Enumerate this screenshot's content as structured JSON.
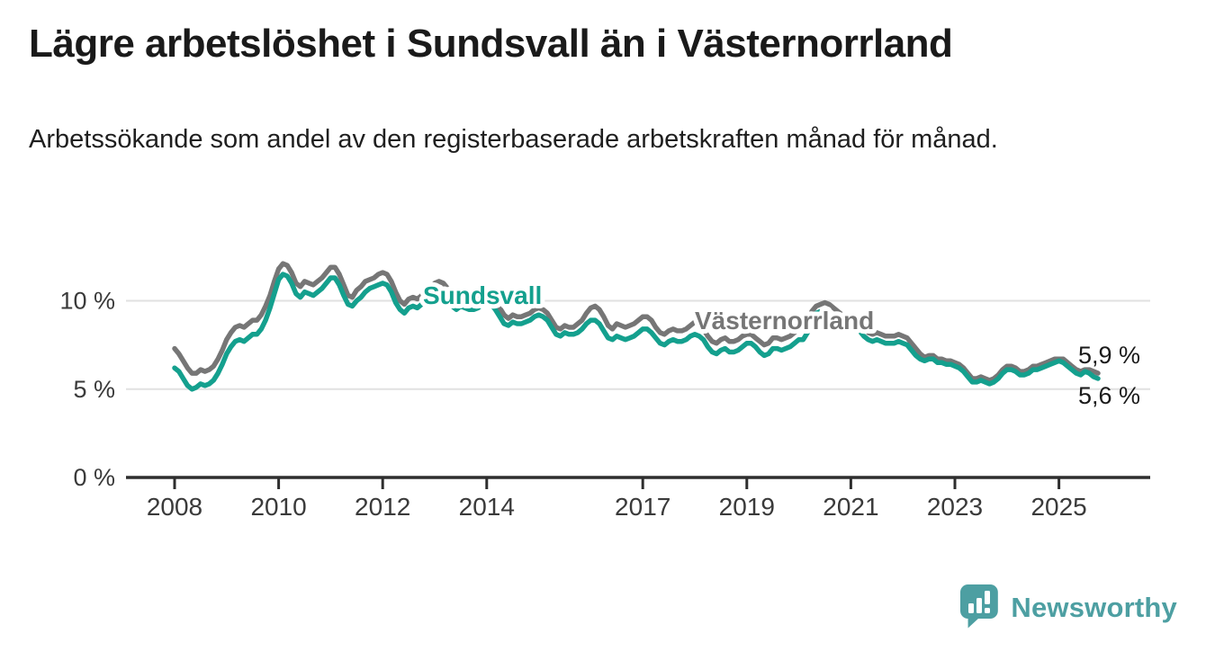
{
  "title": "Lägre arbetslöshet i Sundsvall än i Västernorrland",
  "subtitle": "Arbetssökande som andel av den registerbaserade arbetskraften månad för månad.",
  "branding": {
    "logo_text": "Newsworthy",
    "logo_color": "#4d9fa2",
    "logo_icon": "speech-bubble-bar-chart-icon"
  },
  "colors": {
    "sundsvall": "#14a08e",
    "vasternorrland": "#767676",
    "axis": "#2e2e2e",
    "gridline": "#e1e1e1",
    "tick_text": "#3a3a3a",
    "value_label_text": "#1a1a1a"
  },
  "chart_data": {
    "type": "line",
    "title": "Lägre arbetslöshet i Sundsvall än i Västernorrland",
    "subtitle": "Arbetssökande som andel av den registerbaserade arbetskraften månad för månad.",
    "unit": "percent of registered labour force",
    "x_frequency": "monthly",
    "x_start": "2008-01",
    "x_end": "2025-10",
    "grid": "horizontal",
    "legend_position": "inline-labels-on-lines",
    "y_axis": {
      "min": 0,
      "max": 12.8,
      "ticks": [
        {
          "value": 0,
          "label": "0 %"
        },
        {
          "value": 5,
          "label": "5 %"
        },
        {
          "value": 10,
          "label": "10 %"
        }
      ]
    },
    "x_axis": {
      "ticks": [
        {
          "year": 2008,
          "label": "2008"
        },
        {
          "year": 2010,
          "label": "2010"
        },
        {
          "year": 2012,
          "label": "2012"
        },
        {
          "year": 2014,
          "label": "2014"
        },
        {
          "year": 2017,
          "label": "2017"
        },
        {
          "year": 2019,
          "label": "2019"
        },
        {
          "year": 2021,
          "label": "2021"
        },
        {
          "year": 2023,
          "label": "2023"
        },
        {
          "year": 2025,
          "label": "2025"
        }
      ]
    },
    "series": [
      {
        "name": "Västernorrland",
        "color": "#767676",
        "end_label": "5,9 %",
        "end_value": 5.9,
        "values": [
          7.3,
          7.0,
          6.6,
          6.2,
          5.9,
          5.9,
          6.1,
          6.0,
          6.1,
          6.3,
          6.7,
          7.2,
          7.8,
          8.2,
          8.5,
          8.6,
          8.5,
          8.7,
          8.9,
          8.9,
          9.2,
          9.7,
          10.3,
          11.1,
          11.8,
          12.1,
          12.0,
          11.6,
          11.0,
          10.8,
          11.1,
          11.0,
          10.9,
          11.1,
          11.3,
          11.6,
          11.9,
          11.9,
          11.5,
          10.9,
          10.3,
          10.2,
          10.6,
          10.8,
          11.1,
          11.2,
          11.3,
          11.5,
          11.6,
          11.5,
          11.1,
          10.5,
          10.0,
          9.8,
          10.1,
          10.2,
          10.1,
          10.3,
          10.5,
          10.7,
          11.0,
          11.1,
          11.0,
          10.7,
          10.2,
          10.0,
          10.2,
          10.1,
          10.0,
          10.0,
          10.1,
          10.3,
          10.4,
          10.3,
          10.0,
          9.6,
          9.2,
          9.0,
          9.2,
          9.1,
          9.1,
          9.2,
          9.3,
          9.5,
          9.6,
          9.5,
          9.3,
          8.9,
          8.5,
          8.4,
          8.6,
          8.5,
          8.5,
          8.7,
          8.9,
          9.3,
          9.6,
          9.7,
          9.5,
          9.1,
          8.6,
          8.4,
          8.7,
          8.6,
          8.5,
          8.6,
          8.7,
          8.9,
          9.1,
          9.1,
          8.9,
          8.5,
          8.2,
          8.1,
          8.3,
          8.4,
          8.3,
          8.3,
          8.4,
          8.6,
          8.8,
          8.7,
          8.4,
          8.0,
          7.7,
          7.6,
          7.8,
          7.9,
          7.7,
          7.7,
          7.8,
          8.0,
          8.1,
          8.1,
          7.9,
          7.7,
          7.5,
          7.6,
          7.9,
          7.9,
          7.8,
          7.9,
          8.0,
          8.2,
          8.4,
          8.4,
          8.7,
          9.4,
          9.7,
          9.8,
          9.9,
          9.8,
          9.6,
          9.4,
          9.2,
          9.1,
          9.1,
          9.0,
          8.8,
          8.5,
          8.2,
          8.1,
          8.2,
          8.1,
          8.0,
          8.0,
          8.0,
          8.1,
          8.0,
          7.9,
          7.6,
          7.3,
          7.0,
          6.8,
          6.9,
          6.9,
          6.7,
          6.7,
          6.6,
          6.6,
          6.5,
          6.4,
          6.2,
          5.9,
          5.6,
          5.6,
          5.7,
          5.6,
          5.5,
          5.6,
          5.8,
          6.1,
          6.3,
          6.3,
          6.2,
          6.0,
          6.0,
          6.1,
          6.3,
          6.3,
          6.4,
          6.5,
          6.6,
          6.7,
          6.7,
          6.7,
          6.5,
          6.3,
          6.1,
          6.0,
          6.1,
          6.1,
          6.0,
          5.9
        ]
      },
      {
        "name": "Sundsvall",
        "color": "#14a08e",
        "end_label": "5,6 %",
        "end_value": 5.6,
        "values": [
          6.2,
          6.0,
          5.6,
          5.2,
          5.0,
          5.1,
          5.3,
          5.2,
          5.3,
          5.5,
          5.9,
          6.4,
          7.0,
          7.4,
          7.7,
          7.8,
          7.7,
          7.9,
          8.1,
          8.1,
          8.4,
          8.9,
          9.6,
          10.4,
          11.2,
          11.5,
          11.4,
          11.0,
          10.4,
          10.2,
          10.5,
          10.4,
          10.3,
          10.5,
          10.7,
          11.0,
          11.3,
          11.3,
          10.9,
          10.3,
          9.8,
          9.7,
          10.0,
          10.2,
          10.5,
          10.7,
          10.8,
          10.9,
          11.0,
          10.9,
          10.5,
          9.9,
          9.5,
          9.3,
          9.6,
          9.7,
          9.6,
          9.8,
          10.0,
          10.2,
          10.4,
          10.5,
          10.4,
          10.1,
          9.7,
          9.5,
          9.7,
          9.6,
          9.5,
          9.5,
          9.6,
          9.8,
          9.9,
          9.8,
          9.5,
          9.1,
          8.7,
          8.6,
          8.8,
          8.7,
          8.7,
          8.8,
          8.9,
          9.1,
          9.2,
          9.1,
          8.9,
          8.5,
          8.1,
          8.0,
          8.2,
          8.1,
          8.1,
          8.2,
          8.4,
          8.7,
          8.9,
          8.9,
          8.7,
          8.3,
          7.9,
          7.8,
          8.0,
          7.9,
          7.8,
          7.9,
          8.0,
          8.2,
          8.4,
          8.4,
          8.2,
          7.9,
          7.6,
          7.5,
          7.7,
          7.8,
          7.7,
          7.7,
          7.8,
          8.0,
          8.1,
          8.0,
          7.8,
          7.4,
          7.1,
          7.0,
          7.2,
          7.3,
          7.1,
          7.1,
          7.2,
          7.4,
          7.6,
          7.6,
          7.4,
          7.1,
          6.9,
          7.0,
          7.3,
          7.3,
          7.2,
          7.3,
          7.4,
          7.6,
          7.8,
          7.8,
          8.2,
          9.0,
          9.3,
          9.4,
          9.4,
          9.3,
          9.1,
          8.9,
          8.7,
          8.6,
          8.6,
          8.5,
          8.3,
          8.0,
          7.8,
          7.7,
          7.8,
          7.7,
          7.6,
          7.6,
          7.6,
          7.7,
          7.6,
          7.5,
          7.2,
          6.9,
          6.7,
          6.6,
          6.7,
          6.7,
          6.5,
          6.5,
          6.4,
          6.4,
          6.3,
          6.2,
          6.0,
          5.7,
          5.4,
          5.4,
          5.5,
          5.4,
          5.3,
          5.4,
          5.6,
          5.9,
          6.1,
          6.1,
          6.0,
          5.8,
          5.8,
          5.9,
          6.1,
          6.1,
          6.2,
          6.3,
          6.4,
          6.5,
          6.6,
          6.5,
          6.3,
          6.1,
          5.9,
          5.8,
          6.0,
          5.9,
          5.7,
          5.6
        ]
      }
    ]
  }
}
